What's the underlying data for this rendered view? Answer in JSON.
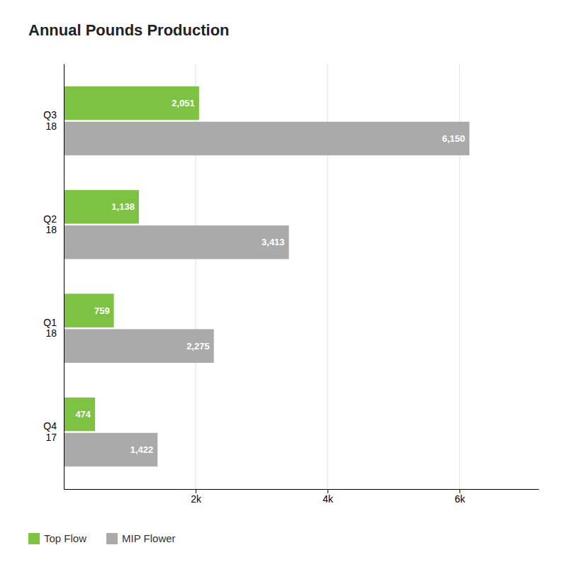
{
  "chart_data": {
    "type": "bar",
    "orientation": "horizontal",
    "title": "Annual Pounds Production",
    "categories": [
      "Q3\n18",
      "Q2\n18",
      "Q1\n18",
      "Q4\n17"
    ],
    "series": [
      {
        "name": "Top Flow",
        "color": "#7dc242",
        "values": [
          2051,
          1138,
          759,
          474
        ],
        "value_labels": [
          "2,051",
          "1,138",
          "759",
          "474"
        ]
      },
      {
        "name": "MIP Flower",
        "color": "#aaaaaa",
        "values": [
          6150,
          3413,
          2275,
          1422
        ],
        "value_labels": [
          "6,150",
          "3,413",
          "2,275",
          "1,422"
        ]
      }
    ],
    "xlim": [
      0,
      7200
    ],
    "xticks": [
      {
        "value": 2000,
        "label": "2k"
      },
      {
        "value": 4000,
        "label": "4k"
      },
      {
        "value": 6000,
        "label": "6k"
      }
    ],
    "grid": true,
    "data_labels": true,
    "legend": "lower left"
  }
}
